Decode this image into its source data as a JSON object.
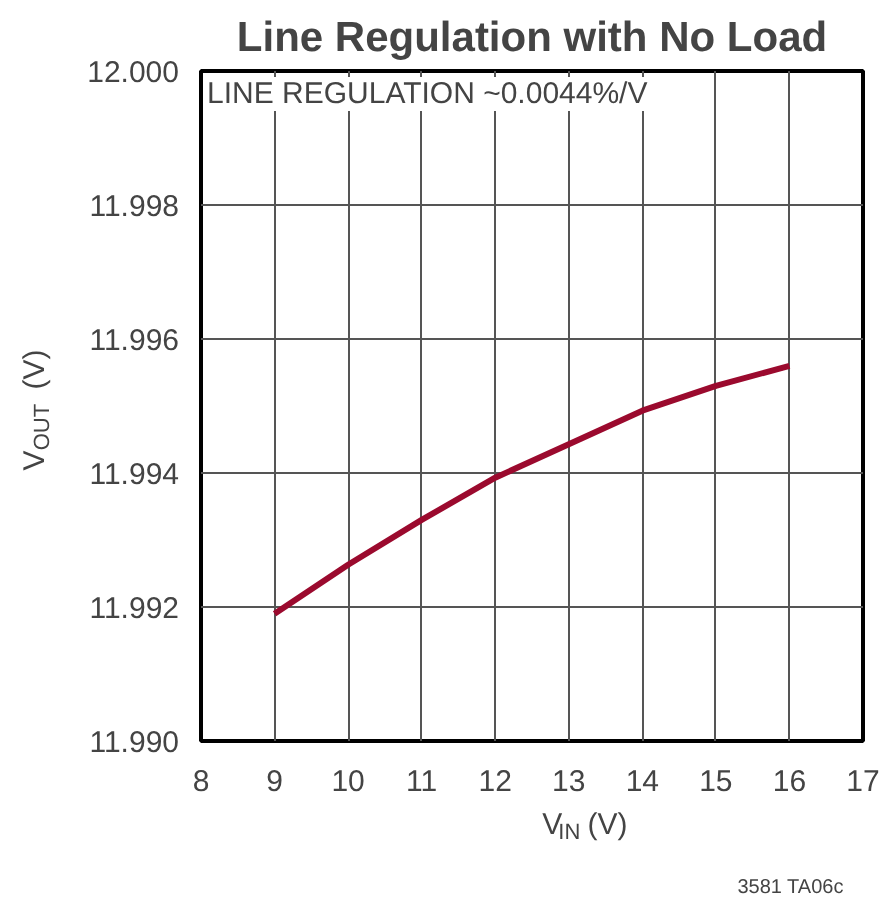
{
  "chart_data": {
    "type": "line",
    "title": "Line Regulation with No Load",
    "xlabel": "V$_{IN}$ (V)",
    "ylabel": "V$_{OUT}$ (V)",
    "x": [
      9,
      10,
      11,
      12,
      13,
      14,
      15,
      16
    ],
    "series": [
      {
        "color": "#9b0a2e",
        "values": [
          11.9919,
          11.99263,
          11.9933,
          11.99393,
          11.99443,
          11.99493,
          11.9953,
          11.9956
        ]
      }
    ],
    "xlim": [
      8,
      17
    ],
    "xticks": [
      8,
      9,
      10,
      11,
      12,
      13,
      14,
      15,
      16,
      17
    ],
    "ylim": [
      11.99,
      12.0
    ],
    "yticks": [
      {
        "value": 11.99,
        "label": "11.990"
      },
      {
        "value": 11.992,
        "label": "11.992"
      },
      {
        "value": 11.994,
        "label": "11.994"
      },
      {
        "value": 11.996,
        "label": "11.996"
      },
      {
        "value": 11.998,
        "label": "11.998"
      },
      {
        "value": 12.0,
        "label": "12.000"
      }
    ],
    "grid": true,
    "line_style": "solid",
    "annotations": [
      "LINE REGULATION ~0.0044%/V",
      "3581 TA06c"
    ]
  }
}
